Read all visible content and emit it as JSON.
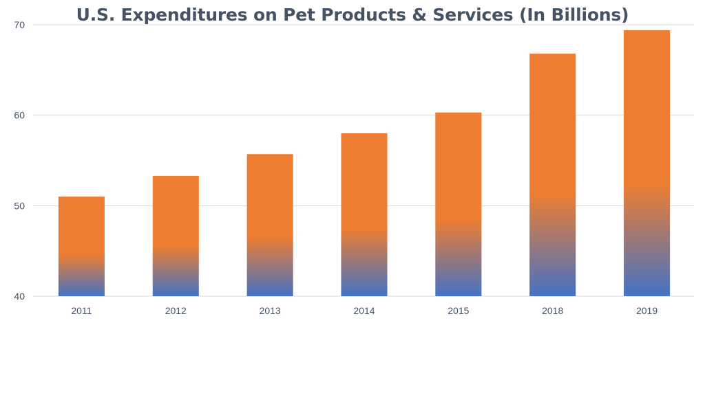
{
  "chart_data": {
    "type": "bar",
    "title": "U.S. Expenditures on Pet Products & Services (In Billions)",
    "xlabel": "",
    "ylabel": "",
    "categories": [
      "2011",
      "2012",
      "2013",
      "2014",
      "2015",
      "2018",
      "2019"
    ],
    "values": [
      51.0,
      53.3,
      55.7,
      58.0,
      60.3,
      66.8,
      69.4
    ],
    "ylim": [
      40,
      70
    ],
    "yticks": [
      40,
      50,
      60,
      70
    ],
    "grid": true,
    "legend": "none",
    "colors": {
      "bar_top": "#ED7D31",
      "bar_bottom": "#4472C4",
      "text": "#445266",
      "grid": "#D9D9D9"
    }
  }
}
